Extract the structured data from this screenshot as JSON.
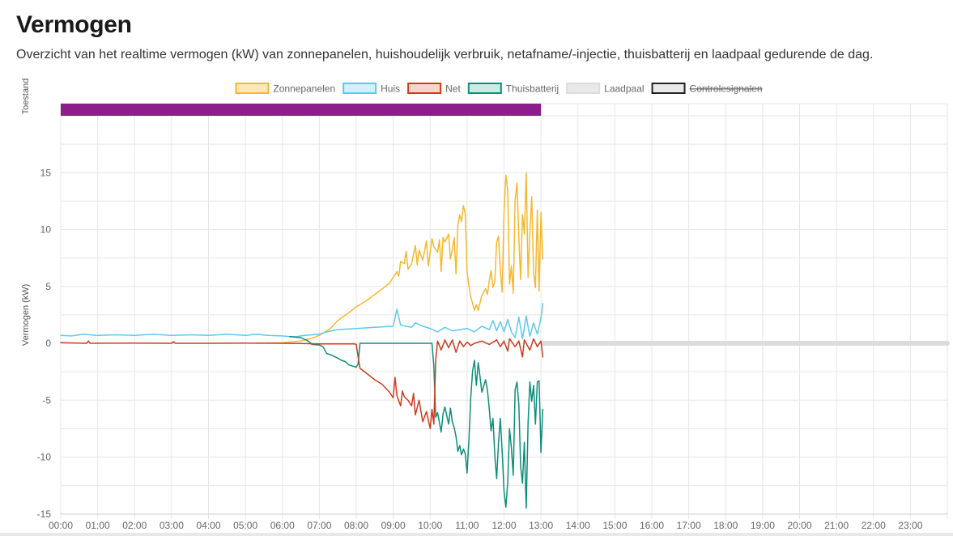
{
  "page": {
    "title": "Vermogen",
    "subtitle": "Overzicht van het realtime vermogen (kW) van zonnepanelen, huishoudelijk verbruik, netafname/-injectie, thuisbatterij en laadpaal gedurende de dag."
  },
  "chart_data": {
    "type": "line",
    "ylabel": "Vermogen (kW)",
    "status_label": "Toestand",
    "ylim": [
      -15,
      20
    ],
    "yticks": [
      -15,
      -10,
      -5,
      0,
      5,
      10,
      15
    ],
    "x_ticks": [
      "00:00",
      "01:00",
      "02:00",
      "03:00",
      "04:00",
      "05:00",
      "06:00",
      "07:00",
      "08:00",
      "09:00",
      "10:00",
      "11:00",
      "12:00",
      "13:00",
      "14:00",
      "15:00",
      "16:00",
      "17:00",
      "18:00",
      "19:00",
      "20:00",
      "21:00",
      "22:00",
      "23:00"
    ],
    "xlim_hours": [
      0,
      24
    ],
    "grid": true,
    "legend_position": "top",
    "status_band": {
      "from_hour": 0,
      "to_hour": 13.0,
      "color": "#8b1e8b"
    },
    "series": [
      {
        "name": "Zonnepanelen",
        "color": "#f5b82e",
        "fill": "#fbe7b9",
        "hidden": false,
        "points": [
          [
            5.3,
            0
          ],
          [
            6.0,
            0.05
          ],
          [
            6.5,
            0.2
          ],
          [
            6.8,
            0.45
          ],
          [
            7.0,
            0.7
          ],
          [
            7.3,
            1.3
          ],
          [
            7.5,
            2.0
          ],
          [
            7.8,
            2.7
          ],
          [
            8.0,
            3.2
          ],
          [
            8.3,
            3.8
          ],
          [
            8.5,
            4.3
          ],
          [
            8.75,
            4.9
          ],
          [
            8.9,
            5.3
          ],
          [
            9.0,
            5.8
          ],
          [
            9.1,
            6.3
          ],
          [
            9.15,
            5.9
          ],
          [
            9.2,
            7.2
          ],
          [
            9.3,
            7.0
          ],
          [
            9.35,
            8.1
          ],
          [
            9.4,
            6.5
          ],
          [
            9.5,
            7.0
          ],
          [
            9.6,
            8.6
          ],
          [
            9.65,
            6.9
          ],
          [
            9.7,
            8.2
          ],
          [
            9.8,
            7.3
          ],
          [
            9.9,
            9.0
          ],
          [
            9.95,
            6.8
          ],
          [
            10.05,
            9.2
          ],
          [
            10.1,
            8.5
          ],
          [
            10.2,
            8.0
          ],
          [
            10.25,
            9.1
          ],
          [
            10.3,
            6.3
          ],
          [
            10.35,
            9.3
          ],
          [
            10.4,
            8.9
          ],
          [
            10.5,
            9.6
          ],
          [
            10.55,
            7.4
          ],
          [
            10.6,
            8.2
          ],
          [
            10.65,
            9.3
          ],
          [
            10.7,
            6.1
          ],
          [
            10.75,
            10.4
          ],
          [
            10.8,
            11.3
          ],
          [
            10.85,
            10.7
          ],
          [
            10.9,
            12.1
          ],
          [
            10.95,
            11.4
          ],
          [
            11.0,
            6.3
          ],
          [
            11.05,
            5.0
          ],
          [
            11.1,
            4.1
          ],
          [
            11.2,
            2.9
          ],
          [
            11.25,
            3.4
          ],
          [
            11.3,
            2.9
          ],
          [
            11.4,
            4.2
          ],
          [
            11.5,
            4.8
          ],
          [
            11.55,
            4.3
          ],
          [
            11.6,
            5.5
          ],
          [
            11.65,
            6.4
          ],
          [
            11.7,
            4.9
          ],
          [
            11.75,
            5.4
          ],
          [
            11.8,
            8.9
          ],
          [
            11.85,
            9.4
          ],
          [
            11.9,
            6.5
          ],
          [
            11.95,
            4.5
          ],
          [
            12.0,
            11.5
          ],
          [
            12.05,
            14.8
          ],
          [
            12.1,
            13.4
          ],
          [
            12.15,
            5.2
          ],
          [
            12.2,
            6.8
          ],
          [
            12.25,
            4.4
          ],
          [
            12.3,
            12.6
          ],
          [
            12.35,
            14.1
          ],
          [
            12.4,
            9.2
          ],
          [
            12.45,
            5.6
          ],
          [
            12.5,
            11.3
          ],
          [
            12.55,
            9.6
          ],
          [
            12.6,
            15.0
          ],
          [
            12.65,
            5.8
          ],
          [
            12.7,
            9.7
          ],
          [
            12.75,
            12.9
          ],
          [
            12.8,
            6.2
          ],
          [
            12.85,
            4.9
          ],
          [
            12.9,
            11.7
          ],
          [
            12.95,
            4.6
          ],
          [
            13.0,
            11.5
          ],
          [
            13.05,
            7.4
          ]
        ]
      },
      {
        "name": "Huis",
        "color": "#5ec8ee",
        "fill": "#d6eef9",
        "hidden": false,
        "points": [
          [
            0,
            0.7
          ],
          [
            0.3,
            0.65
          ],
          [
            0.6,
            0.8
          ],
          [
            1.0,
            0.7
          ],
          [
            1.5,
            0.75
          ],
          [
            2.0,
            0.7
          ],
          [
            2.5,
            0.8
          ],
          [
            3.0,
            0.7
          ],
          [
            3.5,
            0.75
          ],
          [
            4.0,
            0.7
          ],
          [
            4.5,
            0.8
          ],
          [
            5.0,
            0.7
          ],
          [
            5.3,
            0.8
          ],
          [
            5.6,
            0.7
          ],
          [
            6.0,
            0.65
          ],
          [
            6.3,
            0.55
          ],
          [
            6.6,
            0.7
          ],
          [
            6.8,
            0.75
          ],
          [
            7.0,
            0.8
          ],
          [
            7.2,
            1.0
          ],
          [
            7.5,
            1.2
          ],
          [
            8.0,
            1.3
          ],
          [
            8.5,
            1.4
          ],
          [
            9.0,
            1.5
          ],
          [
            9.1,
            3.0
          ],
          [
            9.2,
            1.6
          ],
          [
            9.5,
            1.4
          ],
          [
            9.6,
            1.8
          ],
          [
            9.8,
            1.5
          ],
          [
            10.0,
            1.3
          ],
          [
            10.2,
            1.0
          ],
          [
            10.4,
            1.4
          ],
          [
            10.6,
            1.1
          ],
          [
            10.8,
            1.2
          ],
          [
            11.0,
            1.3
          ],
          [
            11.2,
            1.0
          ],
          [
            11.4,
            1.5
          ],
          [
            11.6,
            1.2
          ],
          [
            11.7,
            2.0
          ],
          [
            11.8,
            1.1
          ],
          [
            11.9,
            1.9
          ],
          [
            12.0,
            1.0
          ],
          [
            12.1,
            2.1
          ],
          [
            12.2,
            1.0
          ],
          [
            12.3,
            0.5
          ],
          [
            12.4,
            2.3
          ],
          [
            12.5,
            0.4
          ],
          [
            12.6,
            2.4
          ],
          [
            12.7,
            0.6
          ],
          [
            12.8,
            1.8
          ],
          [
            12.9,
            0.8
          ],
          [
            13.0,
            2.2
          ],
          [
            13.05,
            3.5
          ]
        ]
      },
      {
        "name": "Net",
        "color": "#cc3b1d",
        "fill": "#f4d6cf",
        "hidden": false,
        "points": [
          [
            0,
            0.05
          ],
          [
            0.7,
            0.0
          ],
          [
            0.75,
            0.2
          ],
          [
            0.8,
            0.0
          ],
          [
            2.0,
            0.02
          ],
          [
            3.0,
            0.0
          ],
          [
            3.05,
            0.15
          ],
          [
            3.1,
            0.0
          ],
          [
            4.0,
            0.0
          ],
          [
            5.0,
            0.02
          ],
          [
            6.0,
            0.0
          ],
          [
            6.5,
            -0.02
          ],
          [
            7.0,
            -0.05
          ],
          [
            7.2,
            -0.05
          ],
          [
            7.5,
            -0.05
          ],
          [
            7.95,
            -0.05
          ],
          [
            8.0,
            -0.1
          ],
          [
            8.05,
            -1.2
          ],
          [
            8.1,
            -2.2
          ],
          [
            8.3,
            -2.7
          ],
          [
            8.5,
            -3.2
          ],
          [
            8.7,
            -3.6
          ],
          [
            8.9,
            -4.3
          ],
          [
            9.0,
            -4.8
          ],
          [
            9.05,
            -3.0
          ],
          [
            9.1,
            -4.6
          ],
          [
            9.2,
            -5.5
          ],
          [
            9.25,
            -4.2
          ],
          [
            9.3,
            -4.7
          ],
          [
            9.4,
            -5.0
          ],
          [
            9.5,
            -5.5
          ],
          [
            9.55,
            -4.4
          ],
          [
            9.6,
            -6.3
          ],
          [
            9.7,
            -5.0
          ],
          [
            9.8,
            -6.9
          ],
          [
            9.9,
            -6.0
          ],
          [
            10.0,
            -7.5
          ],
          [
            10.05,
            -5.8
          ],
          [
            10.1,
            -7.1
          ],
          [
            10.15,
            -1.5
          ],
          [
            10.2,
            0.2
          ],
          [
            10.3,
            -0.6
          ],
          [
            10.4,
            0.3
          ],
          [
            10.5,
            -0.4
          ],
          [
            10.6,
            0.3
          ],
          [
            10.7,
            -0.8
          ],
          [
            10.8,
            0.2
          ],
          [
            10.9,
            -0.3
          ],
          [
            11.0,
            0.1
          ],
          [
            11.1,
            -0.2
          ],
          [
            11.2,
            0.0
          ],
          [
            11.4,
            0.2
          ],
          [
            11.6,
            -0.1
          ],
          [
            11.8,
            0.3
          ],
          [
            11.9,
            -0.3
          ],
          [
            12.0,
            0.2
          ],
          [
            12.1,
            -0.7
          ],
          [
            12.15,
            0.4
          ],
          [
            12.3,
            -0.3
          ],
          [
            12.4,
            0.2
          ],
          [
            12.5,
            -1.2
          ],
          [
            12.55,
            0.3
          ],
          [
            12.7,
            -0.6
          ],
          [
            12.8,
            0.4
          ],
          [
            12.9,
            -0.3
          ],
          [
            13.0,
            0.2
          ],
          [
            13.05,
            -1.2
          ]
        ]
      },
      {
        "name": "Thuisbatterij",
        "color": "#0c8f7a",
        "fill": "#cfe9e3",
        "hidden": false,
        "points": [
          [
            6.2,
            0.6
          ],
          [
            6.5,
            0.5
          ],
          [
            6.7,
            0.2
          ],
          [
            6.8,
            -0.1
          ],
          [
            7.0,
            -0.15
          ],
          [
            7.1,
            -0.3
          ],
          [
            7.2,
            -0.9
          ],
          [
            7.3,
            -1.0
          ],
          [
            7.5,
            -1.3
          ],
          [
            7.6,
            -1.5
          ],
          [
            7.7,
            -1.6
          ],
          [
            7.8,
            -1.9
          ],
          [
            8.0,
            -2.1
          ],
          [
            8.05,
            -1.8
          ],
          [
            8.1,
            0.0
          ],
          [
            8.5,
            0.0
          ],
          [
            9.0,
            0.0
          ],
          [
            9.5,
            0.0
          ],
          [
            10.0,
            0.0
          ],
          [
            10.05,
            0.0
          ],
          [
            10.1,
            -2.0
          ],
          [
            10.15,
            -6.5
          ],
          [
            10.2,
            -6.1
          ],
          [
            10.3,
            -7.8
          ],
          [
            10.35,
            -6.2
          ],
          [
            10.4,
            -5.6
          ],
          [
            10.5,
            -7.1
          ],
          [
            10.55,
            -5.7
          ],
          [
            10.6,
            -6.9
          ],
          [
            10.65,
            -7.4
          ],
          [
            10.7,
            -8.2
          ],
          [
            10.75,
            -9.5
          ],
          [
            10.8,
            -9.0
          ],
          [
            10.85,
            -9.8
          ],
          [
            10.9,
            -9.3
          ],
          [
            10.95,
            -9.7
          ],
          [
            11.0,
            -11.4
          ],
          [
            11.05,
            -8.4
          ],
          [
            11.1,
            -4.8
          ],
          [
            11.15,
            -2.4
          ],
          [
            11.2,
            -1.5
          ],
          [
            11.25,
            -3.7
          ],
          [
            11.3,
            -1.7
          ],
          [
            11.35,
            -2.9
          ],
          [
            11.4,
            -4.3
          ],
          [
            11.5,
            -3.2
          ],
          [
            11.55,
            -4.1
          ],
          [
            11.6,
            -5.8
          ],
          [
            11.65,
            -7.7
          ],
          [
            11.7,
            -6.6
          ],
          [
            11.75,
            -9.8
          ],
          [
            11.8,
            -11.9
          ],
          [
            11.85,
            -8.7
          ],
          [
            11.9,
            -6.6
          ],
          [
            11.95,
            -9.5
          ],
          [
            12.0,
            -13.0
          ],
          [
            12.05,
            -14.4
          ],
          [
            12.1,
            -12.2
          ],
          [
            12.15,
            -7.5
          ],
          [
            12.2,
            -9.2
          ],
          [
            12.25,
            -11.6
          ],
          [
            12.3,
            -4.1
          ],
          [
            12.35,
            -3.4
          ],
          [
            12.4,
            -5.4
          ],
          [
            12.45,
            -10.8
          ],
          [
            12.5,
            -12.3
          ],
          [
            12.55,
            -8.7
          ],
          [
            12.6,
            -14.5
          ],
          [
            12.65,
            -7.0
          ],
          [
            12.7,
            -3.4
          ],
          [
            12.75,
            -5.1
          ],
          [
            12.8,
            -3.7
          ],
          [
            12.85,
            -7.1
          ],
          [
            12.9,
            -3.4
          ],
          [
            12.95,
            -3.3
          ],
          [
            13.0,
            -9.6
          ],
          [
            13.05,
            -5.8
          ]
        ]
      },
      {
        "name": "Laadpaal",
        "color": "#dcdcdc",
        "fill": "#e9e9e9",
        "hidden": false,
        "points": [
          [
            13.05,
            0
          ],
          [
            24,
            0
          ]
        ]
      },
      {
        "name": "Controlesignalen",
        "color": "#222222",
        "fill": "#e9e9e9",
        "hidden": true,
        "points": []
      }
    ]
  }
}
